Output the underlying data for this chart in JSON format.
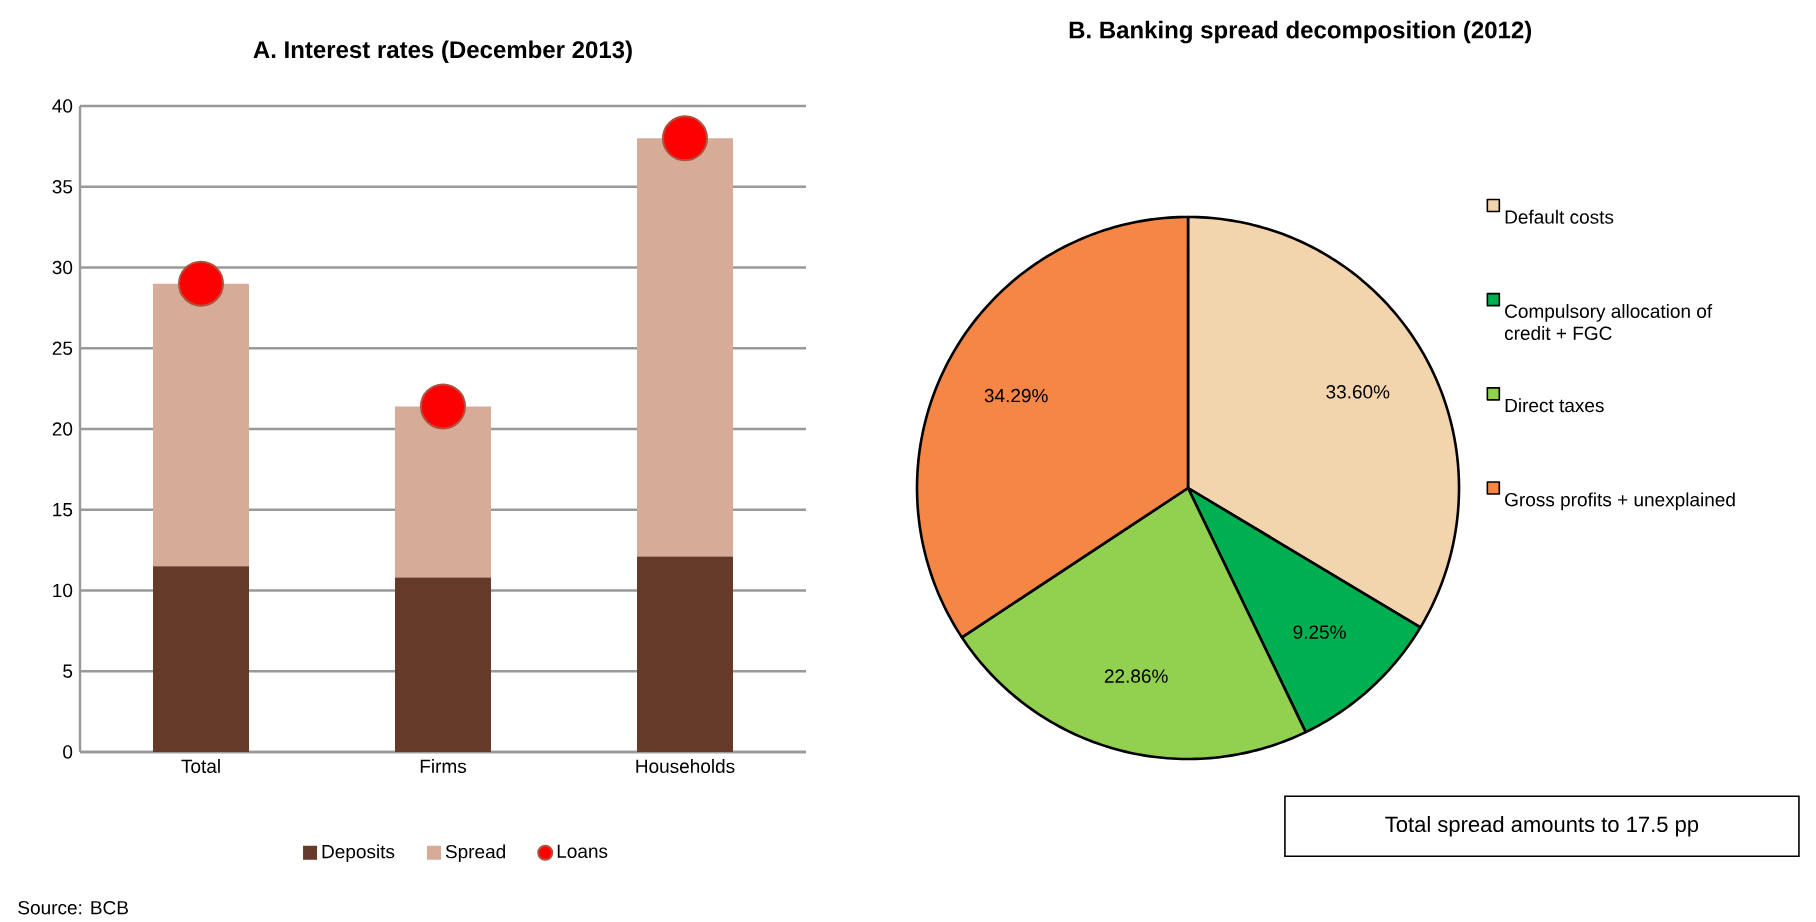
{
  "chart_data": [
    {
      "type": "bar",
      "title": "A. Interest rates (December 2013)",
      "categories": [
        "Total",
        "Firms",
        "Households"
      ],
      "stacked": true,
      "series": [
        {
          "name": "Deposits",
          "color": "#663a29",
          "values": [
            11.5,
            10.8,
            12.1
          ]
        },
        {
          "name": "Spread",
          "color": "#d6ab97",
          "values": [
            17.5,
            10.6,
            25.9
          ]
        },
        {
          "name": "Loans",
          "type": "scatter",
          "color": "#ff0000",
          "values": [
            29.0,
            21.4,
            38.0
          ]
        }
      ],
      "ylim": [
        0,
        40
      ],
      "yticks": [
        0,
        5,
        10,
        15,
        20,
        25,
        30,
        35,
        40
      ],
      "grid": "y",
      "legend": "bottom",
      "annotations": [
        "Source: BCB"
      ]
    },
    {
      "type": "pie",
      "title": "B. Banking spread decomposition (2012)",
      "categories": [
        "Default costs",
        "Compulsory allocation of credit + FGC",
        "Direct taxes",
        "Gross profits + unexplained"
      ],
      "values": [
        33.6,
        9.25,
        22.86,
        34.29
      ],
      "colors": [
        "#f2d4ad",
        "#00b050",
        "#92d050",
        "#f68646"
      ],
      "value_labels": [
        "33.60%",
        "9.25%",
        "22.86%",
        "34.29%"
      ],
      "legend": "right",
      "annotations": [
        "Total spread amounts to 17.5 pp"
      ]
    }
  ]
}
